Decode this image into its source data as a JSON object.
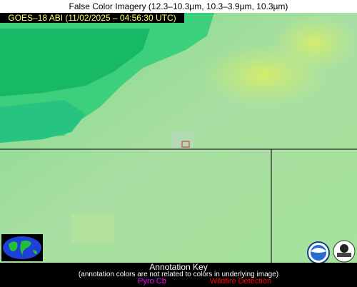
{
  "header": {
    "title": "False Color Imagery (12.3–10.3µm, 10.3–3.9µm, 10.3µm)",
    "label": "GOES–18 ABI (11/02/2025 – 04:56:30 UTC)"
  },
  "annotation_key": {
    "title": "Annotation Key",
    "note": "(annotation colors are not related to colors in underlying image)",
    "items": [
      {
        "label": "Pyro Cb",
        "color": "#ff00ff"
      },
      {
        "label": "Wildfire Detection",
        "color": "#ff0000"
      }
    ]
  }
}
